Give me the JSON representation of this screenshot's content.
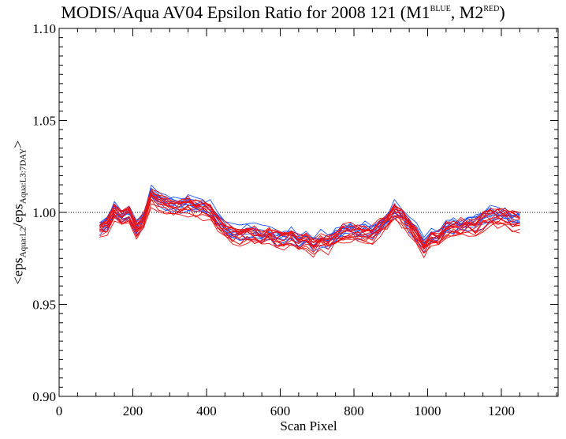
{
  "title": {
    "main": "MODIS/Aqua AV04 Epsilon Ratio for 2008 121 (M1",
    "sup1": "BLUE",
    "mid": ", M2",
    "sup2": "RED",
    "end": ")"
  },
  "ylabel": {
    "prefix": "<eps",
    "sub1": "Aqua:L2",
    "mid": "/eps",
    "sub2": "Aqua:L3:7DAY",
    "suffix": ">"
  },
  "colors": {
    "blue": "#1a55ff",
    "red": "#ee1111",
    "axis": "#000000",
    "reference": "#000000"
  },
  "chart_data": {
    "type": "line",
    "xlabel": "Scan Pixel",
    "xlim": [
      0,
      1354
    ],
    "ylim": [
      0.9,
      1.1
    ],
    "xticks": [
      0,
      200,
      400,
      600,
      800,
      1000,
      1200
    ],
    "yticks": [
      0.9,
      0.95,
      1.0,
      1.05,
      1.1
    ],
    "ytick_labels": [
      "0.90",
      "0.95",
      "1.00",
      "1.05",
      "1.10"
    ],
    "reference_line": {
      "y": 1.0,
      "style": "dotted"
    },
    "series_groups": [
      {
        "group": "M1 (BLUE)",
        "color": "blue",
        "count": 10
      },
      {
        "group": "M2 (RED)",
        "color": "red",
        "count": 14
      }
    ],
    "x": [
      110,
      130,
      150,
      170,
      190,
      210,
      230,
      250,
      270,
      290,
      310,
      330,
      350,
      370,
      390,
      410,
      430,
      450,
      470,
      490,
      510,
      530,
      550,
      570,
      590,
      610,
      630,
      650,
      670,
      690,
      710,
      730,
      750,
      770,
      790,
      810,
      830,
      850,
      870,
      890,
      910,
      930,
      950,
      970,
      990,
      1010,
      1030,
      1050,
      1070,
      1090,
      1110,
      1130,
      1150,
      1170,
      1190,
      1210,
      1230,
      1250
    ],
    "mean_profile": [
      0.99,
      0.992,
      1.0,
      0.996,
      0.998,
      0.99,
      0.996,
      1.009,
      1.006,
      1.004,
      1.002,
      1.003,
      1.004,
      1.002,
      1.002,
      1.0,
      0.994,
      0.99,
      0.987,
      0.987,
      0.988,
      0.988,
      0.986,
      0.987,
      0.985,
      0.984,
      0.986,
      0.983,
      0.984,
      0.981,
      0.984,
      0.983,
      0.986,
      0.988,
      0.989,
      0.988,
      0.988,
      0.988,
      0.991,
      0.995,
      1.0,
      0.997,
      0.992,
      0.987,
      0.98,
      0.985,
      0.985,
      0.99,
      0.991,
      0.991,
      0.992,
      0.992,
      0.995,
      0.997,
      0.997,
      0.997,
      0.995,
      0.995
    ]
  }
}
